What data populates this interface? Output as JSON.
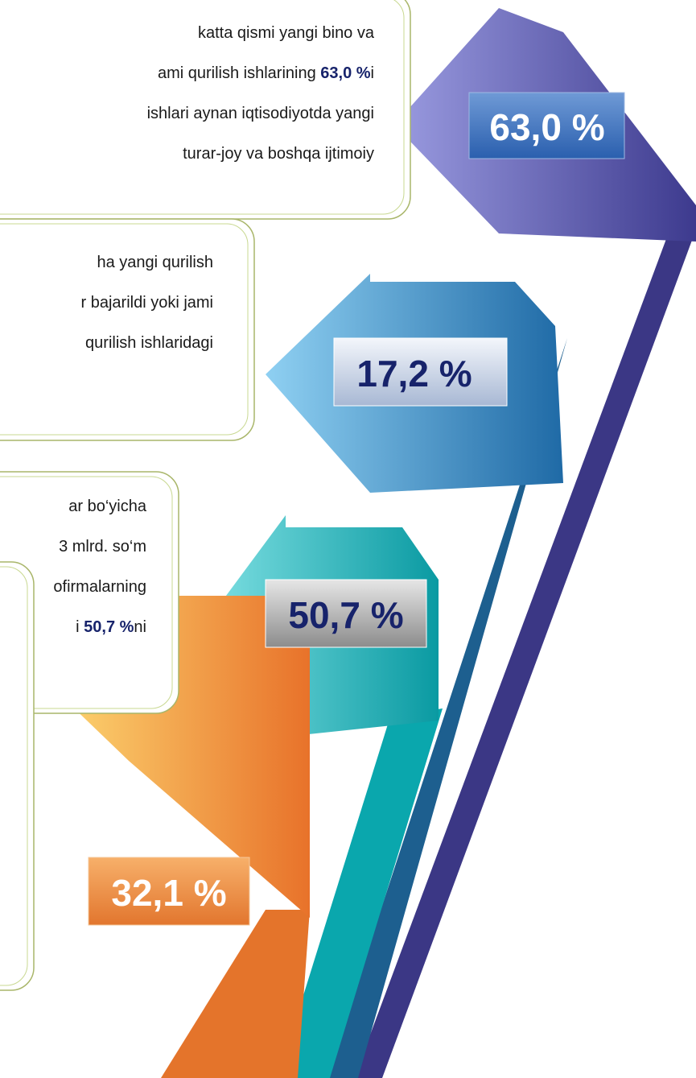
{
  "boxes": [
    {
      "lines": [
        [
          {
            "t": "katta qismi yangi bino va"
          }
        ],
        [
          {
            "t": "ami qurilish ishlarining "
          },
          {
            "t": "63,0 %",
            "b": true
          },
          {
            "t": "i"
          }
        ],
        [
          {
            "t": "ishlari aynan iqtisodiyotda yangi"
          }
        ],
        [
          {
            "t": "turar-joy va boshqa ijtimoiy"
          }
        ]
      ]
    },
    {
      "lines": [
        [
          {
            "t": "ha yangi qurilish"
          }
        ],
        [
          {
            "t": "r bajarildi yoki jami"
          }
        ],
        [
          {
            "t": "qurilish ishlaridagi"
          }
        ]
      ]
    },
    {
      "lines": [
        [
          {
            "t": "ar bo‘yicha"
          }
        ],
        [
          {
            "t": "3 mlrd. so‘m"
          }
        ],
        [
          {
            "t": "ofirmalarning"
          }
        ],
        [
          {
            "t": "i "
          },
          {
            "t": "50,7 %",
            "b": true
          },
          {
            "t": "ni"
          }
        ]
      ]
    },
    {
      "lines": []
    }
  ],
  "arrows": [
    {
      "label": "63,0 %"
    },
    {
      "label": "17,2 %"
    },
    {
      "label": "50,7 %"
    },
    {
      "label": "32,1 %"
    }
  ]
}
